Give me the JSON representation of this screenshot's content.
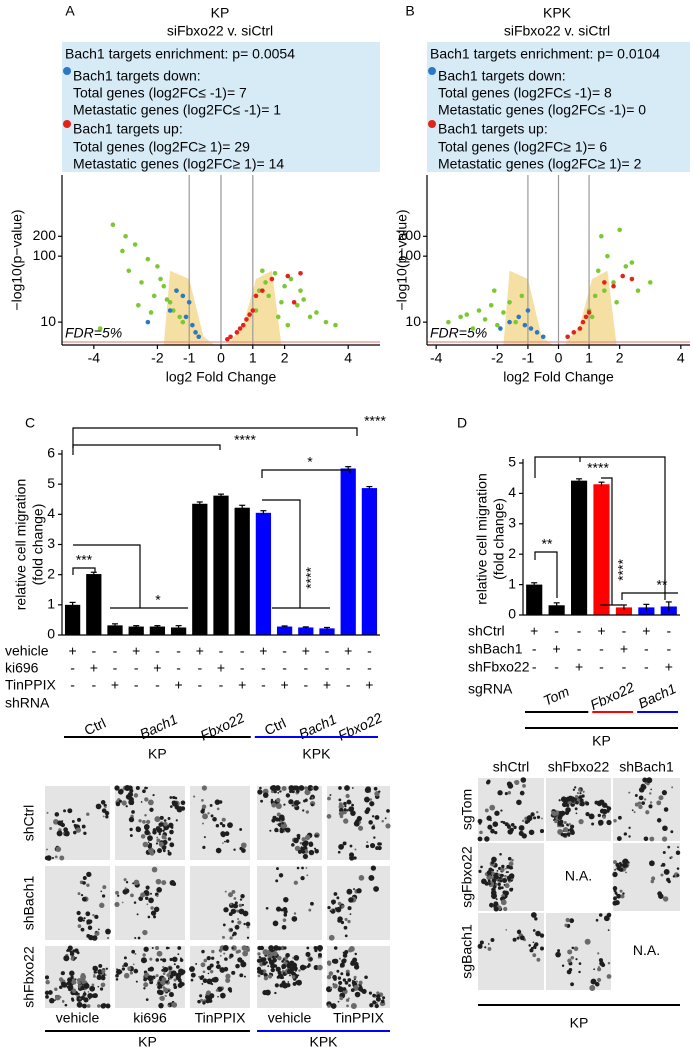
{
  "chart_data": [
    {
      "type": "scatter",
      "panel": "A",
      "title": "KP",
      "subtitle": "siFbxo22 v. siCtrl",
      "annotations": [
        "Bach1 targets enrichment: p= 0.0054",
        "Total genes (log2FC≤ -1)= 7",
        "Metastatic genes (log2FC≤ -1)= 1",
        "Total genes (log2FC≥ 1)= 29",
        "Metastatic genes (log2FC≥ 1)= 14"
      ],
      "series": [
        {
          "color": "#7cc832",
          "x": [
            -3.8,
            -3.4,
            -3.1,
            -2.9,
            -2.7,
            -2.5,
            -2.3,
            -2.1,
            -2.0,
            -1.8,
            -1.6,
            -1.5,
            -1.3,
            -1.2,
            -3.0,
            -2.6,
            -2.2,
            -1.9,
            -1.4,
            -1.7,
            1.1,
            1.2,
            1.4,
            1.5,
            1.7,
            1.9,
            2.0,
            2.2,
            2.4,
            2.6,
            2.8,
            3.0,
            3.3,
            3.6,
            1.3,
            1.8,
            2.1,
            2.5
          ],
          "values": [
            8,
            300,
            120,
            60,
            150,
            40,
            90,
            25,
            70,
            35,
            20,
            15,
            12,
            10,
            200,
            18,
            14,
            45,
            30,
            22,
            15,
            30,
            40,
            25,
            55,
            20,
            35,
            45,
            18,
            22,
            12,
            14,
            10,
            9,
            60,
            12,
            9,
            30
          ]
        },
        {
          "name": "Bach1 targets down:",
          "color": "#2b78c6",
          "x": [
            -1.6,
            -1.4,
            -1.2,
            -1.1,
            -1.0,
            -0.9,
            -0.8,
            -0.7,
            -2.3
          ],
          "values": [
            15,
            30,
            25,
            12,
            20,
            9,
            7,
            6,
            10
          ]
        },
        {
          "name": "Bach1 targets up:",
          "color": "#e2231a",
          "x": [
            0.2,
            0.3,
            0.5,
            0.6,
            0.7,
            0.8,
            0.9,
            1.1,
            1.3,
            1.6,
            2.1,
            2.3,
            2.5,
            1.0
          ],
          "values": [
            5.5,
            6,
            7,
            8,
            9,
            11,
            13,
            25,
            30,
            45,
            50,
            20,
            55,
            15
          ]
        }
      ],
      "xlabel": "log2 Fold Change",
      "ylabel": "−log10(p−value)",
      "xlim": [
        -5,
        5
      ],
      "ylim": [
        4.5,
        1700
      ],
      "log_y": true,
      "xticks": [
        -4,
        -2,
        -1,
        0,
        1,
        2,
        4
      ],
      "yticks": [
        10,
        100,
        200
      ],
      "reference_lines": [
        -1,
        0,
        1
      ],
      "threshold": {
        "value": 5,
        "label": "FDR=5%",
        "color": "#f08a8a"
      }
    },
    {
      "type": "scatter",
      "panel": "B",
      "title": "KPK",
      "subtitle": "siFbxo22 v. siCtrl",
      "annotations": [
        "Bach1 targets enrichment: p= 0.0104",
        "Total genes (log2FC≤ -1)= 8",
        "Metastatic genes (log2FC≤ -1)= 0",
        "Total genes (log2FC≥ 1)= 6",
        "Metastatic genes (log2FC≥ 1)= 2"
      ],
      "series": [
        {
          "color": "#7cc832",
          "x": [
            -3.6,
            -3.2,
            -2.8,
            -2.6,
            -2.4,
            -2.2,
            -2.0,
            -1.8,
            -1.6,
            -1.4,
            -1.2,
            -3.0,
            -2.1,
            1.0,
            1.2,
            1.3,
            1.5,
            1.6,
            1.8,
            2.0,
            2.2,
            2.4,
            2.6,
            3.0,
            1.1,
            1.4,
            1.9
          ],
          "values": [
            10,
            12,
            8,
            15,
            11,
            18,
            9,
            14,
            20,
            10,
            25,
            13,
            30,
            15,
            25,
            60,
            30,
            100,
            40,
            250,
            70,
            80,
            30,
            40,
            12,
            200,
            20
          ]
        },
        {
          "name": "Bach1 targets down:",
          "color": "#2b78c6",
          "x": [
            -1.9,
            -1.6,
            -1.3,
            -1.1,
            -1.0,
            -0.9,
            -0.7,
            -0.5
          ],
          "values": [
            8,
            10,
            12,
            9,
            15,
            8,
            7,
            6
          ]
        },
        {
          "name": "Bach1 targets up:",
          "color": "#e2231a",
          "x": [
            0.3,
            0.5,
            0.7,
            0.8,
            0.9,
            1.0,
            1.5,
            1.8,
            2.1,
            2.4
          ],
          "values": [
            6,
            7,
            8,
            10,
            12,
            14,
            40,
            35,
            50,
            45
          ]
        }
      ],
      "xlabel": "log2 Fold Change",
      "ylabel": "−log10(p−value)",
      "xlim": [
        -4.3,
        4.3
      ],
      "ylim": [
        4.5,
        1700
      ],
      "log_y": true,
      "xticks": [
        -4,
        -2,
        -1,
        0,
        1,
        2,
        4
      ],
      "yticks": [
        10,
        100,
        200
      ],
      "reference_lines": [
        -1,
        0,
        1
      ],
      "threshold": {
        "value": 5,
        "label": "FDR=5%",
        "color": "#f08a8a"
      }
    },
    {
      "type": "bar",
      "panel": "C",
      "ylabel": [
        "relative cell migration",
        "(fold change)"
      ],
      "values": [
        1.0,
        2.02,
        0.32,
        0.28,
        0.28,
        0.25,
        4.35,
        4.62,
        4.22,
        4.05,
        0.28,
        0.25,
        0.22,
        5.52,
        4.87
      ],
      "errors": [
        0.08,
        0.06,
        0.05,
        0.03,
        0.03,
        0.06,
        0.06,
        0.05,
        0.08,
        0.07,
        0.02,
        0.02,
        0.03,
        0.06,
        0.05
      ],
      "colors": [
        "#000000",
        "#000000",
        "#000000",
        "#000000",
        "#000000",
        "#000000",
        "#000000",
        "#000000",
        "#000000",
        "#0000ff",
        "#0000ff",
        "#0000ff",
        "#0000ff",
        "#0000ff",
        "#0000ff"
      ],
      "ylim": [
        0,
        6
      ],
      "yticks": [
        0,
        1,
        2,
        3,
        4,
        5,
        6
      ],
      "treatments": [
        {
          "name": "vehicle",
          "marks": [
            "+",
            "-",
            "-",
            "+",
            "-",
            "-",
            "+",
            "-",
            "-",
            "+",
            "-",
            "+",
            "-",
            "+",
            "-"
          ]
        },
        {
          "name": "ki696",
          "marks": [
            "-",
            "+",
            "-",
            "-",
            "+",
            "-",
            "-",
            "+",
            "-",
            "-",
            "-",
            "-",
            "-",
            "-",
            "-"
          ]
        },
        {
          "name": "TinPPIX",
          "marks": [
            "-",
            "-",
            "+",
            "-",
            "-",
            "+",
            "-",
            "-",
            "+",
            "-",
            "+",
            "-",
            "+",
            "-",
            "+"
          ]
        }
      ],
      "grouping_label": "shRNA",
      "groups": [
        "Ctrl",
        "Bach1",
        "Fbxo22",
        "Ctrl",
        "Bach1",
        "Fbxo22"
      ],
      "genotypes": [
        {
          "label": "KP",
          "color": "#000000"
        },
        {
          "label": "KPK",
          "color": "#0000ff"
        }
      ],
      "significance": [
        "****",
        "*",
        "****",
        "***",
        "*",
        "****"
      ]
    },
    {
      "type": "bar",
      "panel": "D",
      "ylabel": [
        "relative cell migration",
        "(fold change)"
      ],
      "values": [
        1.0,
        0.32,
        4.42,
        4.3,
        0.25,
        0.25,
        0.28
      ],
      "errors": [
        0.06,
        0.08,
        0.06,
        0.07,
        0.08,
        0.1,
        0.15
      ],
      "colors": [
        "#000000",
        "#000000",
        "#000000",
        "#ff0000",
        "#ff0000",
        "#0000ff",
        "#0000ff"
      ],
      "ylim": [
        0,
        5
      ],
      "yticks": [
        0,
        1,
        2,
        3,
        4,
        5
      ],
      "treatments": [
        {
          "name": "shCtrl",
          "marks": [
            "+",
            "-",
            "-",
            "+",
            "-",
            "+",
            "-"
          ]
        },
        {
          "name": "shBach1",
          "marks": [
            "-",
            "+",
            "-",
            "-",
            "+",
            "-",
            "-"
          ]
        },
        {
          "name": "shFbxo22",
          "marks": [
            "-",
            "-",
            "+",
            "-",
            "-",
            "-",
            "+"
          ]
        }
      ],
      "grouping_label": "sgRNA",
      "groups": [
        {
          "label": "Tom",
          "color": "#000000"
        },
        {
          "label": "Fbxo22",
          "color": "#ff0000"
        },
        {
          "label": "Bach1",
          "color": "#0000ff"
        }
      ],
      "genotypes": [
        {
          "label": "KP",
          "color": "#000000"
        }
      ],
      "significance": [
        "****",
        "**",
        "****",
        "**"
      ]
    }
  ],
  "micrographs_c": {
    "row_labels": [
      "shCtrl",
      "shBach1",
      "shFbxo22"
    ],
    "column_labels": [
      "vehicle",
      "ki696",
      "TinPPIX",
      "vehicle",
      "TinPPIX"
    ],
    "groups": [
      {
        "label": "KP",
        "color": "#000000"
      },
      {
        "label": "KPK",
        "color": "#0000ff"
      }
    ]
  },
  "micrographs_d": {
    "column_labels": [
      "shCtrl",
      "shFbxo22",
      "shBach1"
    ],
    "row_labels": [
      "sgTom",
      "sgFbxo22",
      "sgBach1"
    ],
    "not_available": [
      "N.A.",
      "N.A."
    ],
    "group": "KP"
  }
}
